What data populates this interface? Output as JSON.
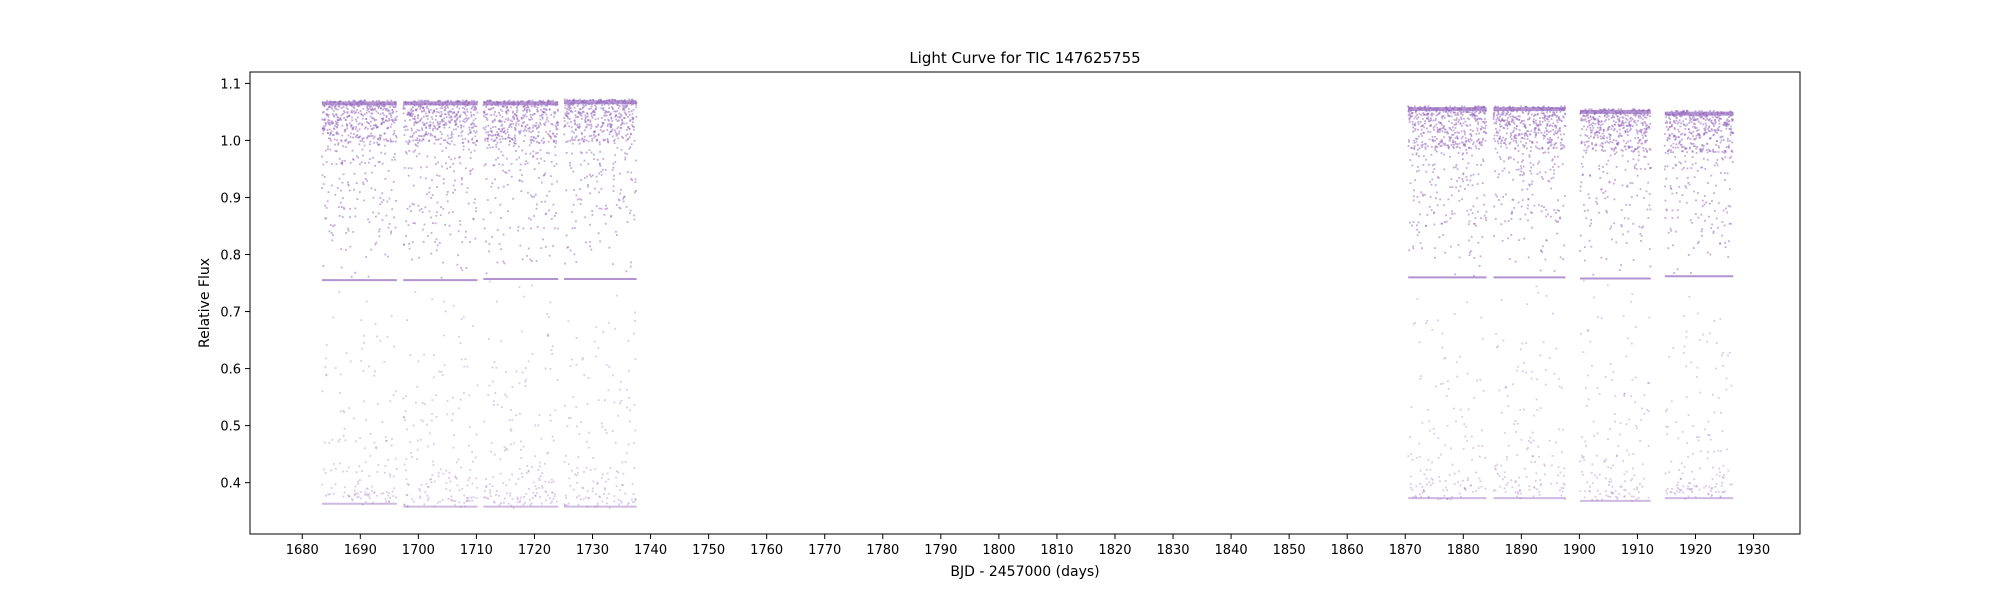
{
  "chart_data": {
    "type": "scatter",
    "title": "Light Curve for TIC 147625755",
    "xlabel": "BJD - 2457000 (days)",
    "ylabel": "Relative Flux",
    "xlim": [
      1671,
      1938
    ],
    "ylim": [
      0.31,
      1.12
    ],
    "xticks": [
      1680,
      1690,
      1700,
      1710,
      1720,
      1730,
      1740,
      1750,
      1760,
      1770,
      1780,
      1790,
      1800,
      1810,
      1820,
      1830,
      1840,
      1850,
      1860,
      1870,
      1880,
      1890,
      1900,
      1910,
      1920,
      1930
    ],
    "xtick_labels": [
      "1680",
      "1690",
      "1700",
      "1710",
      "1720",
      "1730",
      "1740",
      "1750",
      "1760",
      "1770",
      "1780",
      "1790",
      "1800",
      "1810",
      "1820",
      "1830",
      "1840",
      "1850",
      "1860",
      "1870",
      "1880",
      "1890",
      "1900",
      "1910",
      "1920",
      "1930"
    ],
    "yticks": [
      0.4,
      0.5,
      0.6,
      0.7,
      0.8,
      0.9,
      1.0,
      1.1
    ],
    "ytick_labels": [
      "0.4",
      "0.5",
      "0.6",
      "0.7",
      "0.8",
      "0.9",
      "1.0",
      "1.1"
    ],
    "grid": false,
    "legend": "none",
    "color": "#9467bd",
    "marker_size": "small",
    "segments": [
      {
        "start": 1683.4,
        "end": 1696.3,
        "flux_min": 0.36,
        "flux_max": 1.07,
        "bright_floor": 0.755
      },
      {
        "start": 1697.4,
        "end": 1710.2,
        "flux_min": 0.355,
        "flux_max": 1.07,
        "bright_floor": 0.755
      },
      {
        "start": 1711.2,
        "end": 1724.1,
        "flux_min": 0.355,
        "flux_max": 1.07,
        "bright_floor": 0.757
      },
      {
        "start": 1725.1,
        "end": 1737.6,
        "flux_min": 0.355,
        "flux_max": 1.072,
        "bright_floor": 0.757
      },
      {
        "start": 1870.5,
        "end": 1884.0,
        "flux_min": 0.37,
        "flux_max": 1.06,
        "bright_floor": 0.76
      },
      {
        "start": 1885.2,
        "end": 1897.6,
        "flux_min": 0.37,
        "flux_max": 1.06,
        "bright_floor": 0.76
      },
      {
        "start": 1900.1,
        "end": 1912.3,
        "flux_min": 0.365,
        "flux_max": 1.055,
        "bright_floor": 0.758
      },
      {
        "start": 1914.7,
        "end": 1926.5,
        "flux_min": 0.37,
        "flux_max": 1.052,
        "bright_floor": 0.762
      }
    ]
  }
}
